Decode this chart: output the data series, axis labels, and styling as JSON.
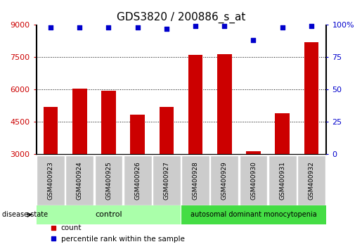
{
  "title": "GDS3820 / 200886_s_at",
  "samples": [
    "GSM400923",
    "GSM400924",
    "GSM400925",
    "GSM400926",
    "GSM400927",
    "GSM400928",
    "GSM400929",
    "GSM400930",
    "GSM400931",
    "GSM400932"
  ],
  "counts": [
    5200,
    6050,
    5950,
    4850,
    5200,
    7600,
    7650,
    3150,
    4900,
    8200
  ],
  "percentile_ranks": [
    98,
    98,
    98,
    98,
    97,
    99,
    99,
    88,
    98,
    99
  ],
  "ylim_left": [
    3000,
    9000
  ],
  "ylim_right": [
    0,
    100
  ],
  "yticks_left": [
    3000,
    4500,
    6000,
    7500,
    9000
  ],
  "yticks_right": [
    0,
    25,
    50,
    75,
    100
  ],
  "bar_color": "#cc0000",
  "dot_color": "#0000cc",
  "bg_color": "#ffffff",
  "tick_area_color": "#cccccc",
  "control_label": "control",
  "disease_label": "autosomal dominant monocytopenia",
  "control_color": "#aaffaa",
  "disease_color": "#44dd44",
  "disease_state_label": "disease state",
  "legend_count_label": "count",
  "legend_percentile_label": "percentile rank within the sample",
  "bar_width": 0.5,
  "n_control": 5,
  "n_disease": 5,
  "grid_yticks": [
    4500,
    6000,
    7500
  ]
}
